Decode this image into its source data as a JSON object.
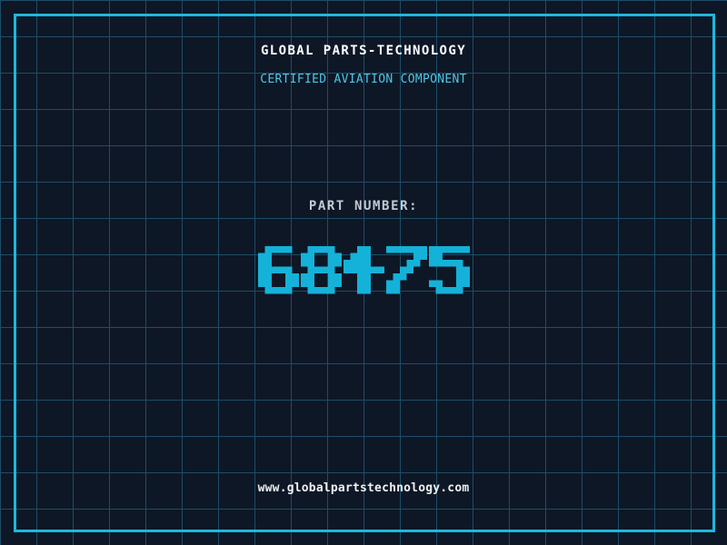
{
  "header": {
    "title": "GLOBAL PARTS-TECHNOLOGY",
    "subtitle": "CERTIFIED AVIATION COMPONENT"
  },
  "part": {
    "label": "PART NUMBER:",
    "number": "68475"
  },
  "footer": {
    "url": "www.globalpartstechnology.com"
  },
  "colors": {
    "background": "#0e1726",
    "grid_line": "#1d4d66",
    "frame_border": "#1cb8dd",
    "title_text": "#ffffff",
    "subtitle_text": "#4ec7e4",
    "label_text": "#c2cad4",
    "part_number": "#14b2d8",
    "url_text": "#edf0f2"
  }
}
